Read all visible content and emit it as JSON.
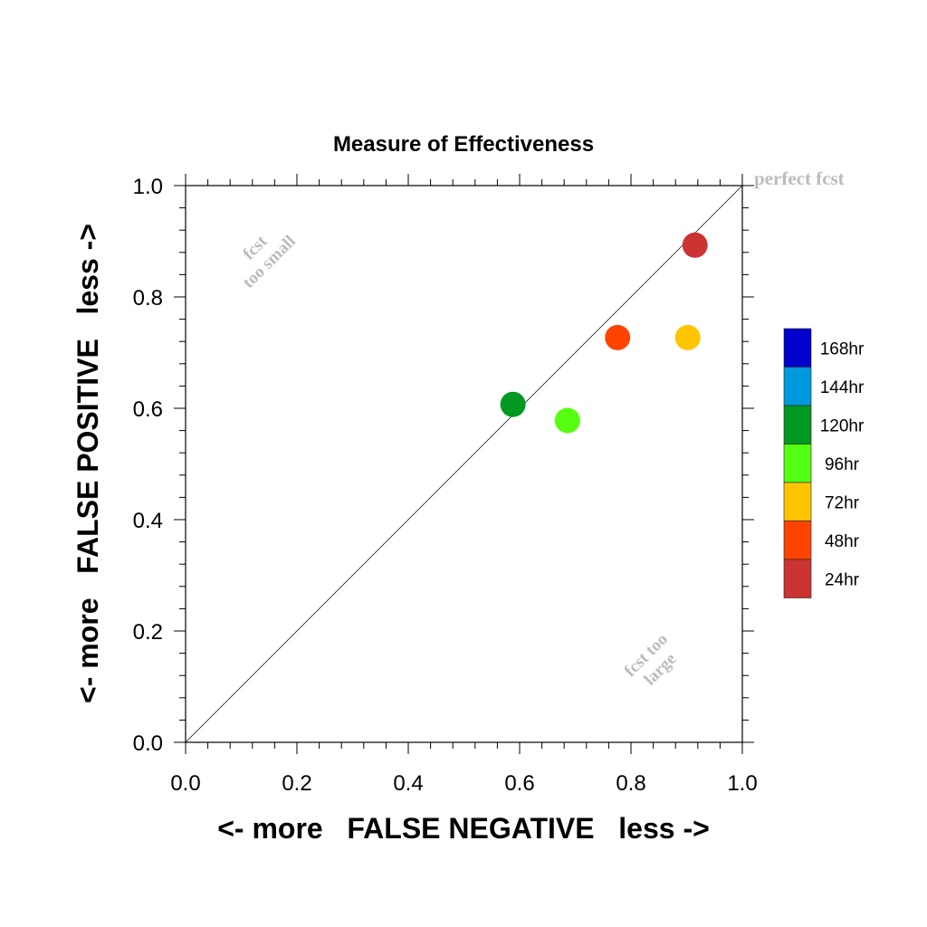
{
  "chart_data": {
    "type": "scatter",
    "title": "Measure of Effectiveness",
    "xlabel": "<- more   FALSE NEGATIVE   less ->",
    "ylabel": "<- more   FALSE POSITIVE   less ->",
    "xlim": [
      0.0,
      1.0
    ],
    "ylim": [
      0.0,
      1.0
    ],
    "x_ticks": [
      "0.0",
      "0.2",
      "0.4",
      "0.6",
      "0.8",
      "1.0"
    ],
    "y_ticks": [
      "0.0",
      "0.2",
      "0.4",
      "0.6",
      "0.8",
      "1.0"
    ],
    "grid": false,
    "reference_line": {
      "from": [
        0,
        0
      ],
      "to": [
        1,
        1
      ]
    },
    "annotations": {
      "perfect": "perfect fcst",
      "too_small": [
        "fcst",
        "too small"
      ],
      "too_large": [
        "fcst too",
        "large"
      ]
    },
    "series": [
      {
        "name": "24hr",
        "x": 0.915,
        "y": 0.893,
        "color": "#CC3333"
      },
      {
        "name": "48hr",
        "x": 0.776,
        "y": 0.727,
        "color": "#FF4400"
      },
      {
        "name": "72hr",
        "x": 0.902,
        "y": 0.727,
        "color": "#FFC400"
      },
      {
        "name": "96hr",
        "x": 0.686,
        "y": 0.578,
        "color": "#55FF11"
      },
      {
        "name": "120hr",
        "x": 0.588,
        "y": 0.607,
        "color": "#009922"
      }
    ],
    "legend": {
      "position": "right",
      "entries": [
        {
          "label": "168hr",
          "color": "#0000CC"
        },
        {
          "label": "144hr",
          "color": "#0099DD"
        },
        {
          "label": "120hr",
          "color": "#009922"
        },
        {
          "label": "96hr",
          "color": "#55FF11"
        },
        {
          "label": "72hr",
          "color": "#FFC400"
        },
        {
          "label": "48hr",
          "color": "#FF4400"
        },
        {
          "label": "24hr",
          "color": "#CC3333"
        }
      ]
    }
  }
}
